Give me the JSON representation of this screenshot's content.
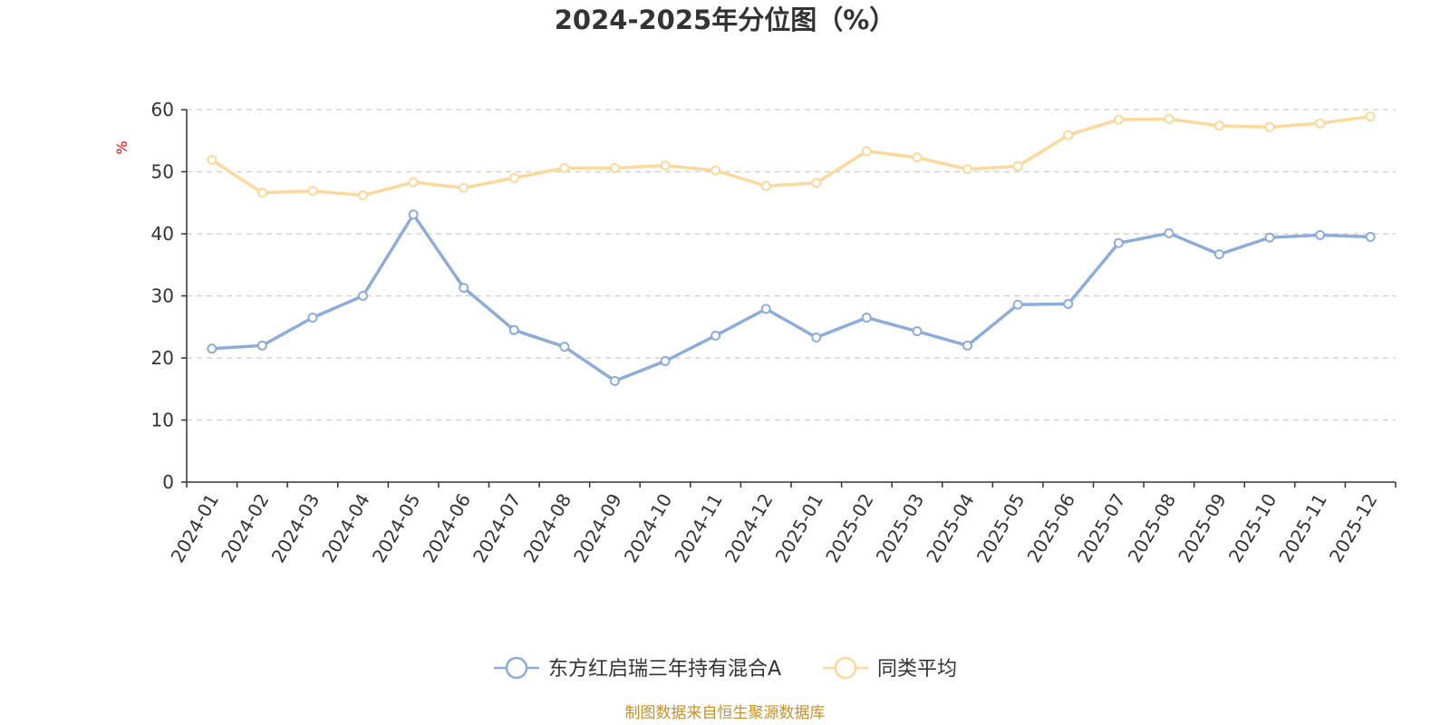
{
  "chart_data": {
    "type": "line",
    "title": "2024-2025年分位图（%）",
    "ylabel": "%",
    "xlabel": "",
    "ylim": [
      0,
      60
    ],
    "yticks": [
      0,
      10,
      20,
      30,
      40,
      50,
      60
    ],
    "grid": "horizontal-dashed",
    "legend_position": "bottom-center",
    "categories": [
      "2024-01",
      "2024-02",
      "2024-03",
      "2024-04",
      "2024-05",
      "2024-06",
      "2024-07",
      "2024-08",
      "2024-09",
      "2024-10",
      "2024-11",
      "2024-12",
      "2025-01",
      "2025-02",
      "2025-03",
      "2025-04",
      "2025-05",
      "2025-06",
      "2025-07",
      "2025-08",
      "2025-09",
      "2025-10",
      "2025-11",
      "2025-12"
    ],
    "series": [
      {
        "name": "东方红启瑞三年持有混合A",
        "color": "#8eacd8",
        "values": [
          21.5,
          22.0,
          26.5,
          30.0,
          43.1,
          31.3,
          24.5,
          21.8,
          16.3,
          19.5,
          23.6,
          27.9,
          23.3,
          26.5,
          24.3,
          22.0,
          28.6,
          28.7,
          38.5,
          40.1,
          36.7,
          39.4,
          39.8,
          39.5
        ]
      },
      {
        "name": "同类平均",
        "color": "#fbd99d",
        "values": [
          51.9,
          46.6,
          46.9,
          46.2,
          48.3,
          47.4,
          49.0,
          50.6,
          50.6,
          51.0,
          50.2,
          47.7,
          48.2,
          53.3,
          52.3,
          50.4,
          50.9,
          55.9,
          58.4,
          58.5,
          57.4,
          57.2,
          57.8,
          58.9
        ]
      }
    ]
  },
  "source_text": "制图数据来自恒生聚源数据库"
}
